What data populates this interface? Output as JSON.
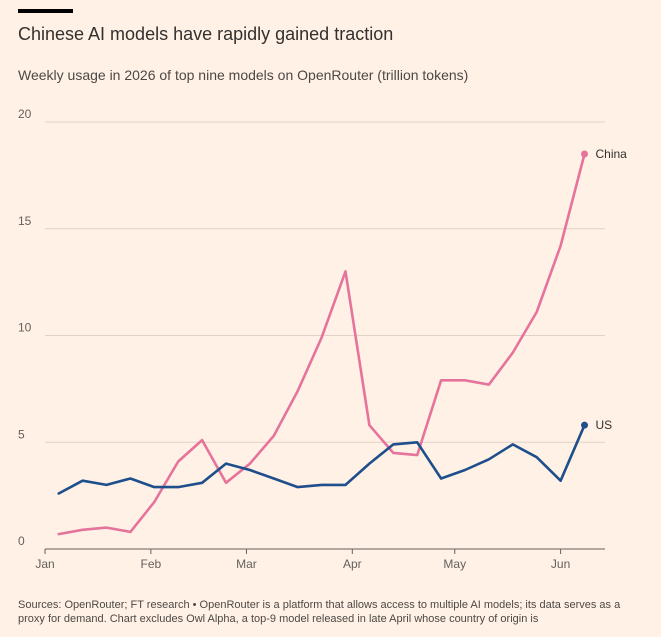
{
  "header": {
    "title": "Chinese AI models have rapidly gained traction",
    "subtitle": "Weekly usage in 2026 of top nine models on OpenRouter (trillion tokens)"
  },
  "footer": {
    "source": "Sources: OpenRouter; FT research • OpenRouter is a platform that allows access to multiple AI models; its data serves as a proxy for demand. Chart excludes Owl Alpha, a top-9 model released in late April whose country of origin is"
  },
  "chart_data": {
    "type": "line",
    "title": "Chinese AI models have rapidly gained traction",
    "subtitle": "Weekly usage in 2026 of top nine models on OpenRouter (trillion tokens)",
    "xlabel": "",
    "ylabel": "",
    "ylim": [
      0,
      20
    ],
    "yticks": [
      "0",
      "5",
      "10",
      "15",
      "20"
    ],
    "xtick_labels": [
      "Jan",
      "Feb",
      "Mar",
      "Apr",
      "May",
      "Jun"
    ],
    "grid": true,
    "x": [
      "2026-01-05",
      "2026-01-12",
      "2026-01-19",
      "2026-01-26",
      "2026-02-02",
      "2026-02-09",
      "2026-02-16",
      "2026-02-23",
      "2026-03-02",
      "2026-03-09",
      "2026-03-16",
      "2026-03-23",
      "2026-03-30",
      "2026-04-06",
      "2026-04-13",
      "2026-04-20",
      "2026-04-27",
      "2026-05-04",
      "2026-05-11",
      "2026-05-18",
      "2026-05-25",
      "2026-06-01",
      "2026-06-08"
    ],
    "series": [
      {
        "name": "China",
        "color": "#e5739b",
        "values": [
          0.7,
          0.9,
          1.0,
          0.8,
          2.2,
          4.1,
          5.1,
          3.1,
          4.0,
          5.3,
          7.4,
          9.9,
          13.0,
          5.8,
          4.5,
          4.4,
          7.9,
          7.9,
          7.7,
          9.2,
          11.1,
          14.2,
          18.5
        ]
      },
      {
        "name": "US",
        "color": "#1e4f8c",
        "values": [
          2.6,
          3.2,
          3.0,
          3.3,
          2.9,
          2.9,
          3.1,
          4.0,
          3.7,
          3.3,
          2.9,
          3.0,
          3.0,
          4.0,
          4.9,
          5.0,
          3.3,
          3.7,
          4.2,
          4.9,
          4.3,
          3.2,
          5.8
        ]
      }
    ]
  }
}
